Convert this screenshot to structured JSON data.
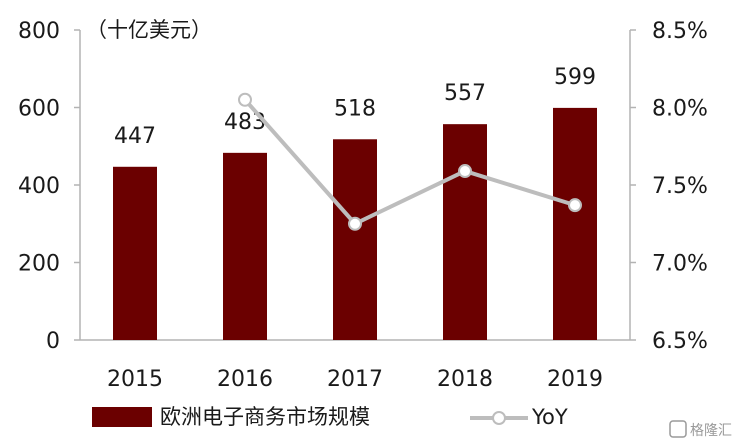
{
  "chart_data": {
    "type": "bar+line",
    "unit_label": "（十亿美元）",
    "categories": [
      "2015",
      "2016",
      "2017",
      "2018",
      "2019"
    ],
    "series": [
      {
        "name": "欧洲电子商务市场规模",
        "type": "bar",
        "axis": "left",
        "color": "#6b0000",
        "values": [
          447,
          483,
          518,
          557,
          599
        ],
        "value_labels": [
          "447",
          "483",
          "518",
          "557",
          "599"
        ]
      },
      {
        "name": "YoY",
        "type": "line",
        "axis": "right",
        "color": "#bdbdbd",
        "values": [
          null,
          8.05,
          7.25,
          7.59,
          7.37
        ]
      }
    ],
    "y_left": {
      "min": 0,
      "max": 800,
      "ticks": [
        "0",
        "200",
        "400",
        "600",
        "800"
      ]
    },
    "y_right": {
      "min": 6.5,
      "max": 8.5,
      "ticks": [
        "6.5%",
        "7.0%",
        "7.5%",
        "8.0%",
        "8.5%"
      ]
    },
    "grid": false,
    "legend_position": "bottom"
  },
  "watermark": {
    "text": "格隆汇"
  }
}
